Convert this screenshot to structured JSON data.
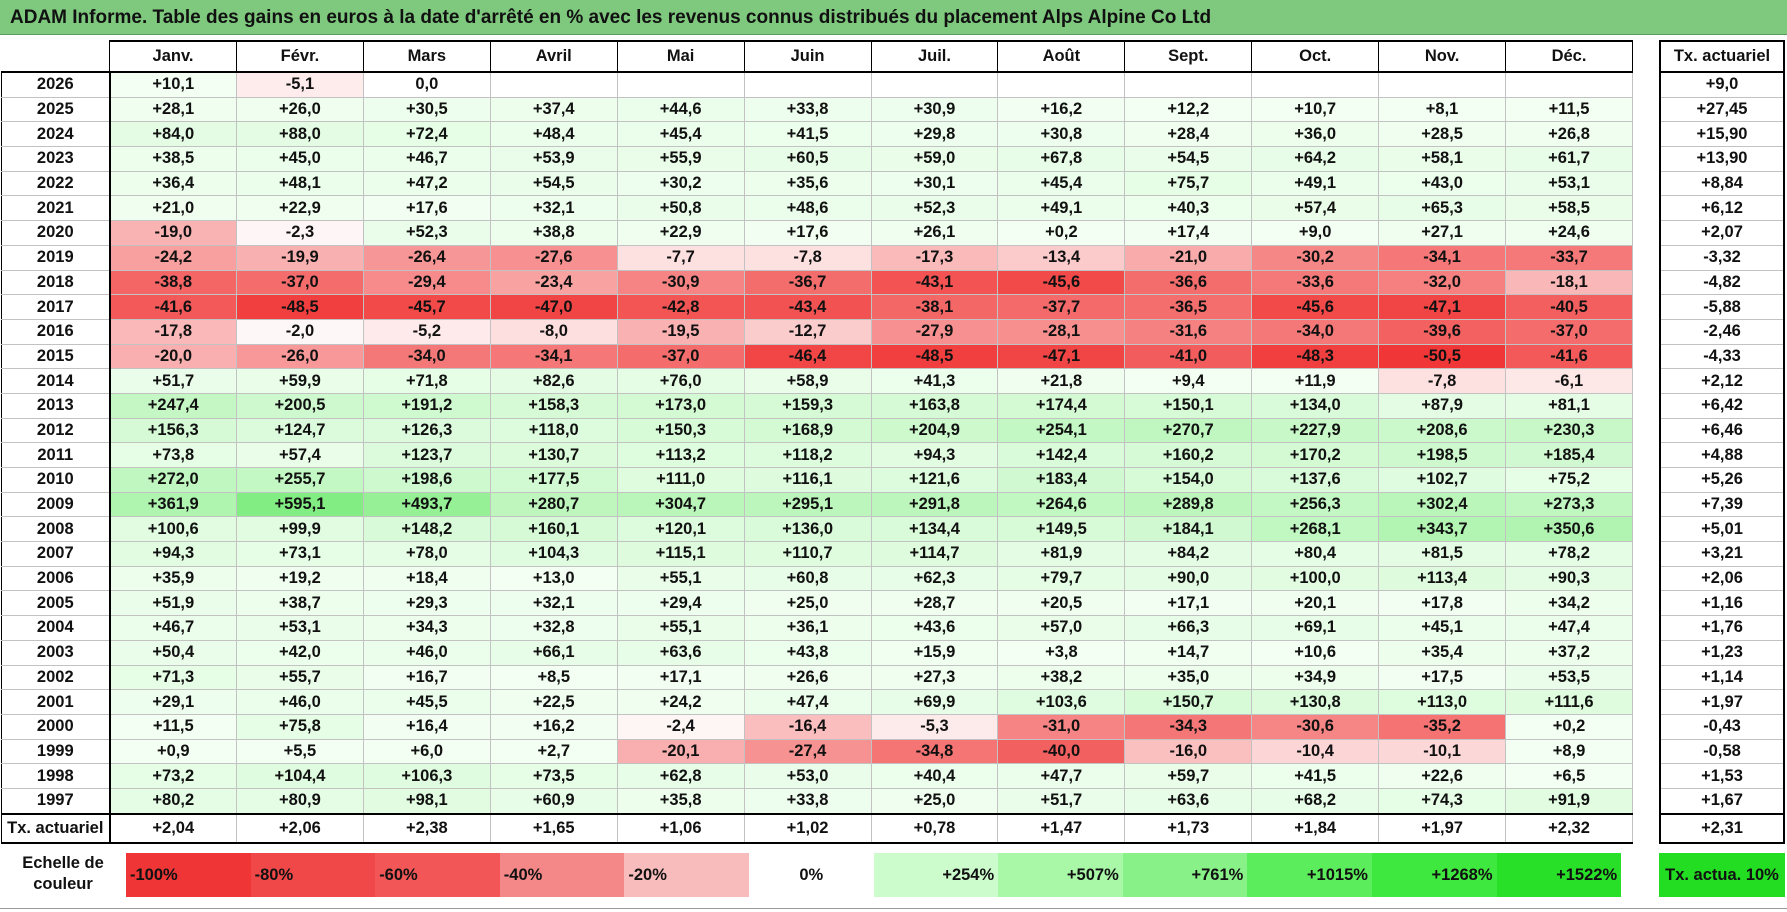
{
  "title": "ADAM Informe. Table des gains en euros à la date d'arrêté en % avec les revenus connus distribués du placement Alps Alpine Co Ltd",
  "months": [
    "Janv.",
    "Févr.",
    "Mars",
    "Avril",
    "Mai",
    "Juin",
    "Juil.",
    "Août",
    "Sept.",
    "Oct.",
    "Nov.",
    "Déc."
  ],
  "side_header": "Tx. actuariel",
  "colors": {
    "header_bar": "#7ec97e",
    "negative_max": "#f03030",
    "positive_max": "#22dd22",
    "neutral": "#ffffff"
  },
  "rows": [
    {
      "year": "2026",
      "values": [
        "+10,1",
        "-5,1",
        "0,0",
        "",
        "",
        "",
        "",
        "",
        "",
        "",
        "",
        ""
      ],
      "rate": "+9,0"
    },
    {
      "year": "2025",
      "values": [
        "+28,1",
        "+26,0",
        "+30,5",
        "+37,4",
        "+44,6",
        "+33,8",
        "+30,9",
        "+16,2",
        "+12,2",
        "+10,7",
        "+8,1",
        "+11,5"
      ],
      "rate": "+27,45"
    },
    {
      "year": "2024",
      "values": [
        "+84,0",
        "+88,0",
        "+72,4",
        "+48,4",
        "+45,4",
        "+41,5",
        "+29,8",
        "+30,8",
        "+28,4",
        "+36,0",
        "+28,5",
        "+26,8"
      ],
      "rate": "+15,90"
    },
    {
      "year": "2023",
      "values": [
        "+38,5",
        "+45,0",
        "+46,7",
        "+53,9",
        "+55,9",
        "+60,5",
        "+59,0",
        "+67,8",
        "+54,5",
        "+64,2",
        "+58,1",
        "+61,7"
      ],
      "rate": "+13,90"
    },
    {
      "year": "2022",
      "values": [
        "+36,4",
        "+48,1",
        "+47,2",
        "+54,5",
        "+30,2",
        "+35,6",
        "+30,1",
        "+45,4",
        "+75,7",
        "+49,1",
        "+43,0",
        "+53,1"
      ],
      "rate": "+8,84"
    },
    {
      "year": "2021",
      "values": [
        "+21,0",
        "+22,9",
        "+17,6",
        "+32,1",
        "+50,8",
        "+48,6",
        "+52,3",
        "+49,1",
        "+40,3",
        "+57,4",
        "+65,3",
        "+58,5"
      ],
      "rate": "+6,12"
    },
    {
      "year": "2020",
      "values": [
        "-19,0",
        "-2,3",
        "+52,3",
        "+38,8",
        "+22,9",
        "+17,6",
        "+26,1",
        "+0,2",
        "+17,4",
        "+9,0",
        "+27,1",
        "+24,6"
      ],
      "rate": "+2,07"
    },
    {
      "year": "2019",
      "values": [
        "-24,2",
        "-19,9",
        "-26,4",
        "-27,6",
        "-7,7",
        "-7,8",
        "-17,3",
        "-13,4",
        "-21,0",
        "-30,2",
        "-34,1",
        "-33,7"
      ],
      "rate": "-3,32"
    },
    {
      "year": "2018",
      "values": [
        "-38,8",
        "-37,0",
        "-29,4",
        "-23,4",
        "-30,9",
        "-36,7",
        "-43,1",
        "-45,6",
        "-36,6",
        "-33,6",
        "-32,0",
        "-18,1"
      ],
      "rate": "-4,82"
    },
    {
      "year": "2017",
      "values": [
        "-41,6",
        "-48,5",
        "-45,7",
        "-47,0",
        "-42,8",
        "-43,4",
        "-38,1",
        "-37,7",
        "-36,5",
        "-45,6",
        "-47,1",
        "-40,5"
      ],
      "rate": "-5,88"
    },
    {
      "year": "2016",
      "values": [
        "-17,8",
        "-2,0",
        "-5,2",
        "-8,0",
        "-19,5",
        "-12,7",
        "-27,9",
        "-28,1",
        "-31,6",
        "-34,0",
        "-39,6",
        "-37,0"
      ],
      "rate": "-2,46"
    },
    {
      "year": "2015",
      "values": [
        "-20,0",
        "-26,0",
        "-34,0",
        "-34,1",
        "-37,0",
        "-46,4",
        "-48,5",
        "-47,1",
        "-41,0",
        "-48,3",
        "-50,5",
        "-41,6"
      ],
      "rate": "-4,33"
    },
    {
      "year": "2014",
      "values": [
        "+51,7",
        "+59,9",
        "+71,8",
        "+82,6",
        "+76,0",
        "+58,9",
        "+41,3",
        "+21,8",
        "+9,4",
        "+11,9",
        "-7,8",
        "-6,1"
      ],
      "rate": "+2,12"
    },
    {
      "year": "2013",
      "values": [
        "+247,4",
        "+200,5",
        "+191,2",
        "+158,3",
        "+173,0",
        "+159,3",
        "+163,8",
        "+174,4",
        "+150,1",
        "+134,0",
        "+87,9",
        "+81,1"
      ],
      "rate": "+6,42"
    },
    {
      "year": "2012",
      "values": [
        "+156,3",
        "+124,7",
        "+126,3",
        "+118,0",
        "+150,3",
        "+168,9",
        "+204,9",
        "+254,1",
        "+270,7",
        "+227,9",
        "+208,6",
        "+230,3"
      ],
      "rate": "+6,46"
    },
    {
      "year": "2011",
      "values": [
        "+73,8",
        "+57,4",
        "+123,7",
        "+130,7",
        "+113,2",
        "+118,2",
        "+94,3",
        "+142,4",
        "+160,2",
        "+170,2",
        "+198,5",
        "+185,4"
      ],
      "rate": "+4,88"
    },
    {
      "year": "2010",
      "values": [
        "+272,0",
        "+255,7",
        "+198,6",
        "+177,5",
        "+111,0",
        "+116,1",
        "+121,6",
        "+183,4",
        "+154,0",
        "+137,6",
        "+102,7",
        "+75,2"
      ],
      "rate": "+5,26"
    },
    {
      "year": "2009",
      "values": [
        "+361,9",
        "+595,1",
        "+493,7",
        "+280,7",
        "+304,7",
        "+295,1",
        "+291,8",
        "+264,6",
        "+289,8",
        "+256,3",
        "+302,4",
        "+273,3"
      ],
      "rate": "+7,39"
    },
    {
      "year": "2008",
      "values": [
        "+100,6",
        "+99,9",
        "+148,2",
        "+160,1",
        "+120,1",
        "+136,0",
        "+134,4",
        "+149,5",
        "+184,1",
        "+268,1",
        "+343,7",
        "+350,6"
      ],
      "rate": "+5,01"
    },
    {
      "year": "2007",
      "values": [
        "+94,3",
        "+73,1",
        "+78,0",
        "+104,3",
        "+115,1",
        "+110,7",
        "+114,7",
        "+81,9",
        "+84,2",
        "+80,4",
        "+81,5",
        "+78,2"
      ],
      "rate": "+3,21"
    },
    {
      "year": "2006",
      "values": [
        "+35,9",
        "+19,2",
        "+18,4",
        "+13,0",
        "+55,1",
        "+60,8",
        "+62,3",
        "+79,7",
        "+90,0",
        "+100,0",
        "+113,4",
        "+90,3"
      ],
      "rate": "+2,06"
    },
    {
      "year": "2005",
      "values": [
        "+51,9",
        "+38,7",
        "+29,3",
        "+32,1",
        "+29,4",
        "+25,0",
        "+28,7",
        "+20,5",
        "+17,1",
        "+20,1",
        "+17,8",
        "+34,2"
      ],
      "rate": "+1,16"
    },
    {
      "year": "2004",
      "values": [
        "+46,7",
        "+53,1",
        "+34,3",
        "+32,8",
        "+55,1",
        "+36,1",
        "+43,6",
        "+57,0",
        "+66,3",
        "+69,1",
        "+45,1",
        "+47,4"
      ],
      "rate": "+1,76"
    },
    {
      "year": "2003",
      "values": [
        "+50,4",
        "+42,0",
        "+46,0",
        "+66,1",
        "+63,6",
        "+43,8",
        "+15,9",
        "+3,8",
        "+14,7",
        "+10,6",
        "+35,4",
        "+37,2"
      ],
      "rate": "+1,23"
    },
    {
      "year": "2002",
      "values": [
        "+71,3",
        "+55,7",
        "+16,7",
        "+8,5",
        "+17,1",
        "+26,6",
        "+27,3",
        "+38,2",
        "+35,0",
        "+34,9",
        "+17,5",
        "+53,5"
      ],
      "rate": "+1,14"
    },
    {
      "year": "2001",
      "values": [
        "+29,1",
        "+46,0",
        "+45,5",
        "+22,5",
        "+24,2",
        "+47,4",
        "+69,9",
        "+103,6",
        "+150,7",
        "+130,8",
        "+113,0",
        "+111,6"
      ],
      "rate": "+1,97"
    },
    {
      "year": "2000",
      "values": [
        "+11,5",
        "+75,8",
        "+16,4",
        "+16,2",
        "-2,4",
        "-16,4",
        "-5,3",
        "-31,0",
        "-34,3",
        "-30,6",
        "-35,2",
        "+0,2"
      ],
      "rate": "-0,43"
    },
    {
      "year": "1999",
      "values": [
        "+0,9",
        "+5,5",
        "+6,0",
        "+2,7",
        "-20,1",
        "-27,4",
        "-34,8",
        "-40,0",
        "-16,0",
        "-10,4",
        "-10,1",
        "+8,9"
      ],
      "rate": "-0,58"
    },
    {
      "year": "1998",
      "values": [
        "+73,2",
        "+104,4",
        "+106,3",
        "+73,5",
        "+62,8",
        "+53,0",
        "+40,4",
        "+47,7",
        "+59,7",
        "+41,5",
        "+22,6",
        "+6,5"
      ],
      "rate": "+1,53"
    },
    {
      "year": "1997",
      "values": [
        "+80,2",
        "+80,9",
        "+98,1",
        "+60,9",
        "+35,8",
        "+33,8",
        "+25,0",
        "+51,7",
        "+63,6",
        "+68,2",
        "+74,3",
        "+91,9"
      ],
      "rate": "+1,67"
    }
  ],
  "footer": {
    "label": "Tx. actuariel",
    "values": [
      "+2,04",
      "+2,06",
      "+2,38",
      "+1,65",
      "+1,06",
      "+1,02",
      "+0,78",
      "+1,47",
      "+1,73",
      "+1,84",
      "+1,97",
      "+2,32"
    ],
    "rate": "+2,31"
  },
  "legend": {
    "label": "Echelle de couleur",
    "steps": [
      {
        "text": "-100%",
        "color": "#ef3535",
        "align": "left"
      },
      {
        "text": "-80%",
        "color": "#f04848",
        "align": "left"
      },
      {
        "text": "-60%",
        "color": "#f25656",
        "align": "left"
      },
      {
        "text": "-40%",
        "color": "#f48888",
        "align": "left"
      },
      {
        "text": "-20%",
        "color": "#f9bcbc",
        "align": "left"
      },
      {
        "text": "0%",
        "color": "#ffffff",
        "align": "center"
      },
      {
        "text": "+254%",
        "color": "#ccfccc",
        "align": "right"
      },
      {
        "text": "+507%",
        "color": "#a8f8a8",
        "align": "right"
      },
      {
        "text": "+761%",
        "color": "#88f288",
        "align": "right"
      },
      {
        "text": "+1015%",
        "color": "#5ced5c",
        "align": "right"
      },
      {
        "text": "+1268%",
        "color": "#3ee83e",
        "align": "right"
      },
      {
        "text": "+1522%",
        "color": "#28e028",
        "align": "right"
      }
    ],
    "tx_label": "Tx. actua. 10%"
  }
}
